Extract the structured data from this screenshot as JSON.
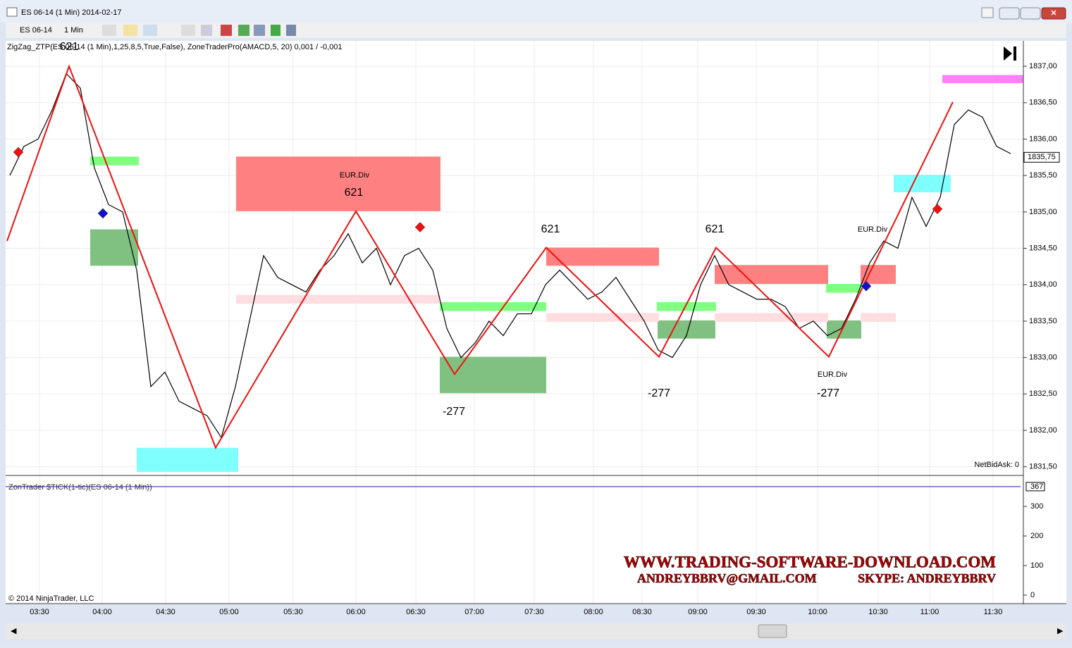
{
  "window": {
    "title": "ES 06-14 (1 Min)  2014-02-17"
  },
  "toolbar": {
    "instrument": "ES 06-14",
    "interval": "1 Min"
  },
  "price_panel": {
    "indicator_label": "ZigZag_ZTP(ES 06-14 (1 Min),1,25,8,5,True,False), ZoneTraderPro(AMACD,5, 20) 0,001 / -0,001",
    "ylim": [
      1831.39,
      1837.33
    ],
    "yticks": [
      {
        "value": 1837.0,
        "label": "1837,00"
      },
      {
        "value": 1836.5,
        "label": "1836,50"
      },
      {
        "value": 1836.0,
        "label": "1836,00"
      },
      {
        "value": 1835.5,
        "label": "1835,50"
      },
      {
        "value": 1835.0,
        "label": "1835,00"
      },
      {
        "value": 1834.5,
        "label": "1834,50"
      },
      {
        "value": 1834.0,
        "label": "1834,00"
      },
      {
        "value": 1833.5,
        "label": "1833,50"
      },
      {
        "value": 1833.0,
        "label": "1833,00"
      },
      {
        "value": 1832.5,
        "label": "1832,50"
      },
      {
        "value": 1832.0,
        "label": "1832,00"
      },
      {
        "value": 1831.5,
        "label": "1831,50"
      }
    ],
    "last_price": {
      "value": 1835.75,
      "label": "1835,75"
    },
    "closes": [
      1835.5,
      1835.9,
      1836.0,
      1836.4,
      1836.9,
      1836.7,
      1835.6,
      1835.1,
      1835.0,
      1834.2,
      1832.6,
      1832.8,
      1832.4,
      1832.3,
      1832.2,
      1831.9,
      1832.6,
      1833.5,
      1834.4,
      1834.1,
      1834.0,
      1833.9,
      1834.2,
      1834.4,
      1834.7,
      1834.3,
      1834.5,
      1834.0,
      1834.4,
      1834.5,
      1834.2,
      1833.4,
      1833.0,
      1833.2,
      1833.5,
      1833.3,
      1833.6,
      1833.6,
      1834.0,
      1834.2,
      1834.0,
      1833.8,
      1833.9,
      1834.1,
      1833.8,
      1833.5,
      1833.1,
      1833.0,
      1833.3,
      1834.0,
      1834.4,
      1834.0,
      1833.9,
      1833.8,
      1833.8,
      1833.7,
      1833.4,
      1833.5,
      1833.3,
      1833.4,
      1833.8,
      1834.3,
      1834.6,
      1834.5,
      1835.2,
      1834.8,
      1835.2,
      1836.2,
      1836.4,
      1836.3,
      1835.9,
      1835.8
    ],
    "zones": [
      {
        "top": 1835.76,
        "bottom": 1835.01,
        "color": "#ff8080"
      },
      {
        "top": 1834.76,
        "bottom": 1834.26,
        "color": "#80c080"
      },
      {
        "top": 1831.76,
        "bottom": 1831.43,
        "color": "#80ffff"
      },
      {
        "top": 1833.01,
        "bottom": 1832.51,
        "color": "#80c080"
      },
      {
        "top": 1834.51,
        "bottom": 1834.26,
        "color": "#ff8080"
      },
      {
        "top": 1834.27,
        "bottom": 1834.01,
        "color": "#ff8080"
      },
      {
        "top": 1833.51,
        "bottom": 1833.26,
        "color": "#80c080"
      },
      {
        "top": 1833.51,
        "bottom": 1833.26,
        "color": "#80c080"
      },
      {
        "top": 1834.27,
        "bottom": 1834.01,
        "color": "#ff8080"
      },
      {
        "top": 1835.51,
        "bottom": 1835.27,
        "color": "#80ffff"
      },
      {
        "top": 1836.88,
        "bottom": 1836.77,
        "color": "#ff80ff"
      },
      {
        "top": 1835.76,
        "bottom": 1835.64,
        "color": "#80ff80"
      },
      {
        "top": 1833.76,
        "bottom": 1833.64,
        "color": "#80ff80"
      },
      {
        "top": 1833.76,
        "bottom": 1833.64,
        "color": "#80ff80"
      },
      {
        "top": 1834.01,
        "bottom": 1833.89,
        "color": "#80ff80"
      },
      {
        "top": 1833.86,
        "bottom": 1833.74,
        "color": "#ffdde0"
      },
      {
        "top": 1833.61,
        "bottom": 1833.49,
        "color": "#ffdde0"
      },
      {
        "top": 1833.61,
        "bottom": 1833.49,
        "color": "#ffdde0"
      },
      {
        "top": 1833.61,
        "bottom": 1833.49,
        "color": "#ffdde0"
      }
    ],
    "zigzag": {
      "color": "#ee1111",
      "values": [
        1834.6,
        1837.0,
        1831.76,
        1835.01,
        1832.77,
        1834.51,
        1833.01,
        1834.51,
        1833.01,
        1836.51
      ]
    },
    "zigzag_labels": [
      "621",
      "621",
      "621",
      "621",
      "-277",
      "-277",
      "-277"
    ],
    "signals": [
      {
        "value": 1835.82,
        "color": "#ee1111"
      },
      {
        "value": 1834.98,
        "color": "#1111cc"
      },
      {
        "value": 1834.79,
        "color": "#ee1111"
      },
      {
        "value": 1833.98,
        "color": "#1111cc"
      },
      {
        "value": 1835.04,
        "color": "#ee1111"
      }
    ],
    "divergence_labels": [
      "EUR.Div",
      "EUR.Div",
      "EUR.Div"
    ],
    "net_bid_ask": "NetBidAsk: 0"
  },
  "tick_panel": {
    "label": "ZonTrader $TICK(1-tic)(ES 06-14 (1 Min))",
    "ylim": [
      -24,
      400
    ],
    "yticks": [
      300,
      200,
      100,
      0
    ],
    "last_value": 367,
    "copyright": "© 2014 NinjaTrader, LLC"
  },
  "time_axis": [
    "03:30",
    "04:00",
    "04:30",
    "05:00",
    "05:30",
    "06:00",
    "06:30",
    "07:00",
    "07:30",
    "08:00",
    "08:30",
    "09:00",
    "09:30",
    "10:00",
    "10:30",
    "11:00",
    "11:30"
  ],
  "watermark": {
    "line1": "WWW.TRADING-SOFTWARE-DOWNLOAD.COM",
    "line2": "ANDREYBBRV@GMAIL.COM",
    "line3": "SKYPE: ANDREYBBRV"
  }
}
